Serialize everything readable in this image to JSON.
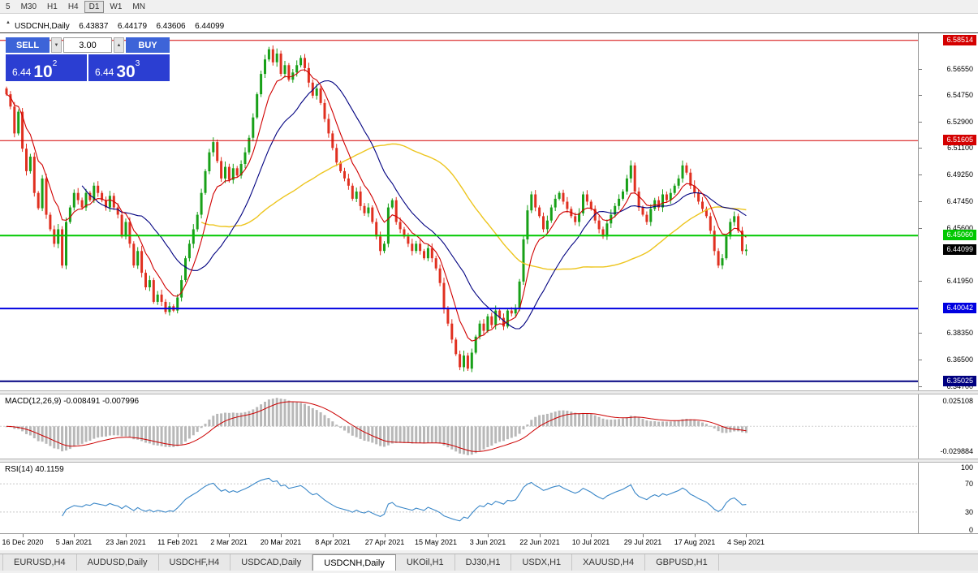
{
  "toolbar": {
    "periods": [
      {
        "label": "5",
        "active": false
      },
      {
        "label": "M30",
        "active": false
      },
      {
        "label": "H1",
        "active": false
      },
      {
        "label": "H4",
        "active": false
      },
      {
        "label": "D1",
        "active": true
      },
      {
        "label": "W1",
        "active": false
      },
      {
        "label": "MN",
        "active": false
      }
    ]
  },
  "chart_header": {
    "collapse_icon": "▲",
    "symbol": "USDCNH,Daily",
    "open": "6.43837",
    "high": "6.44179",
    "low": "6.43606",
    "close": "6.44099"
  },
  "trade_panel": {
    "sell_label": "SELL",
    "buy_label": "BUY",
    "volume": "3.00",
    "spin_down": "▼",
    "spin_up": "▲",
    "sell_price": {
      "base": "6.44",
      "big": "10",
      "sup": "2"
    },
    "buy_price": {
      "base": "6.44",
      "big": "30",
      "sup": "3"
    },
    "colors": {
      "button": "#3d64d8",
      "price_bg": "#2b3ed2"
    }
  },
  "tabs": [
    {
      "label": "EURUSD,H4",
      "active": false
    },
    {
      "label": "AUDUSD,Daily",
      "active": false
    },
    {
      "label": "USDCHF,H4",
      "active": false
    },
    {
      "label": "USDCAD,Daily",
      "active": false
    },
    {
      "label": "USDCNH,Daily",
      "active": true
    },
    {
      "label": "UKOil,H1",
      "active": false
    },
    {
      "label": "DJ30,H1",
      "active": false
    },
    {
      "label": "USDX,H1",
      "active": false
    },
    {
      "label": "XAUUSD,H4",
      "active": false
    },
    {
      "label": "GBPUSD,H1",
      "active": false
    }
  ],
  "chart_data": {
    "type": "candlestick",
    "symbol": "USDCNH",
    "timeframe": "Daily",
    "ohlc_current": {
      "open": 6.43837,
      "high": 6.44179,
      "low": 6.43606,
      "close": 6.44099
    },
    "price_range": {
      "top": 6.59,
      "bottom": 6.344
    },
    "closes": [
      6.548,
      6.5395,
      6.521,
      6.536,
      6.5105,
      6.495,
      6.505,
      6.48,
      6.4695,
      6.49,
      6.465,
      6.455,
      6.445,
      6.455,
      6.43,
      6.46,
      6.47,
      6.48,
      6.475,
      6.47,
      6.48,
      6.475,
      6.485,
      6.48,
      6.475,
      6.47,
      6.478,
      6.47,
      6.465,
      6.45,
      6.46,
      6.445,
      6.43,
      6.44,
      6.425,
      6.415,
      6.42,
      6.405,
      6.41,
      6.405,
      6.398,
      6.402,
      6.399,
      6.408,
      6.42,
      6.435,
      6.445,
      6.455,
      6.465,
      6.48,
      6.495,
      6.508,
      6.515,
      6.502,
      6.49,
      6.498,
      6.489,
      6.497,
      6.492,
      6.5,
      6.508,
      6.518,
      6.532,
      6.548,
      6.562,
      6.572,
      6.579,
      6.57,
      6.576,
      6.562,
      6.568,
      6.558,
      6.563,
      6.568,
      6.573,
      6.566,
      6.556,
      6.547,
      6.552,
      6.542,
      6.531,
      6.521,
      6.511,
      6.501,
      6.495,
      6.49,
      6.485,
      6.476,
      6.481,
      6.471,
      6.466,
      6.47,
      6.46,
      6.45,
      6.44,
      6.445,
      6.47,
      6.475,
      6.46,
      6.455,
      6.45,
      6.445,
      6.44,
      6.445,
      6.44,
      6.435,
      6.442,
      6.435,
      6.428,
      6.418,
      6.4,
      6.39,
      6.379,
      6.369,
      6.36,
      6.368,
      6.359,
      6.37,
      6.381,
      6.39,
      6.385,
      6.395,
      6.389,
      6.399,
      6.394,
      6.388,
      6.399,
      6.397,
      6.4,
      6.419,
      6.448,
      6.468,
      6.479,
      6.47,
      6.464,
      6.455,
      6.461,
      6.47,
      6.476,
      6.48,
      6.474,
      6.469,
      6.464,
      6.46,
      6.466,
      6.479,
      6.474,
      6.469,
      6.461,
      6.455,
      6.45,
      6.459,
      6.465,
      6.471,
      6.476,
      6.481,
      6.49,
      6.499,
      6.481,
      6.47,
      6.465,
      6.46,
      6.469,
      6.475,
      6.47,
      6.479,
      6.475,
      6.48,
      6.485,
      6.49,
      6.499,
      6.494,
      6.485,
      6.48,
      6.474,
      6.469,
      6.464,
      6.454,
      6.44,
      6.43,
      6.435,
      6.45,
      6.46,
      6.464,
      6.454,
      6.44,
      6.441
    ],
    "candle_colors": {
      "up": "#18a018",
      "down": "#e03020"
    },
    "moving_averages": [
      {
        "name": "slow",
        "method": "sma",
        "period": 50,
        "color": "#edc51e"
      },
      {
        "name": "mid",
        "method": "sma",
        "period": 20,
        "color": "#000080"
      },
      {
        "name": "fast",
        "method": "ema",
        "period": 8,
        "color": "#d00000"
      }
    ],
    "levels": [
      {
        "price": 6.58514,
        "label": "6.58514",
        "color": "#d40000",
        "line_width": 1,
        "type": "resistance"
      },
      {
        "price": 6.51605,
        "label": "6.51605",
        "color": "#d40000",
        "line_width": 1,
        "type": "resistance"
      },
      {
        "price": 6.4506,
        "label": "6.45060",
        "color": "#00c800",
        "line_width": 2,
        "type": "support"
      },
      {
        "price": 6.40042,
        "label": "6.40042",
        "color": "#0000e0",
        "line_width": 2,
        "type": "support"
      },
      {
        "price": 6.35025,
        "label": "6.35025",
        "color": "#000080",
        "line_width": 2,
        "type": "support"
      }
    ],
    "current_price": {
      "price": 6.44099,
      "label": "6.44099",
      "color": "#000000"
    },
    "price_axis_labels": [
      "6.56550",
      "6.54750",
      "6.52900",
      "6.51100",
      "6.49250",
      "6.47450",
      "6.45600",
      "6.41950",
      "6.38350",
      "6.36500",
      "6.34700"
    ],
    "date_labels": [
      "16 Dec 2020",
      "5 Jan 2021",
      "23 Jan 2021",
      "11 Feb 2021",
      "2 Mar 2021",
      "20 Mar 2021",
      "8 Apr 2021",
      "27 Apr 2021",
      "15 May 2021",
      "3 Jun 2021",
      "22 Jun 2021",
      "10 Jul 2021",
      "29 Jul 2021",
      "17 Aug 2021",
      "4 Sep 2021"
    ],
    "date_anchor_indices": [
      4,
      17,
      30,
      43,
      56,
      69,
      82,
      95,
      108,
      121,
      134,
      147,
      160,
      173,
      186
    ],
    "indicators": {
      "macd": {
        "label": "MACD(12,26,9) -0.008491 -0.007996",
        "params": [
          12,
          26,
          9
        ],
        "value_main": -0.008491,
        "value_signal": -0.007996,
        "axis_max": "0.025108",
        "axis_min": "-0.029884",
        "hist_color": "#b8b8b8",
        "signal_color": "#cc0000"
      },
      "rsi": {
        "label": "RSI(14) 40.1159",
        "period": 14,
        "value": 40.1159,
        "axis_labels": [
          "100",
          "70",
          "30",
          "0"
        ],
        "level_lines": [
          70,
          30
        ],
        "line_color": "#3a87c8"
      }
    }
  }
}
